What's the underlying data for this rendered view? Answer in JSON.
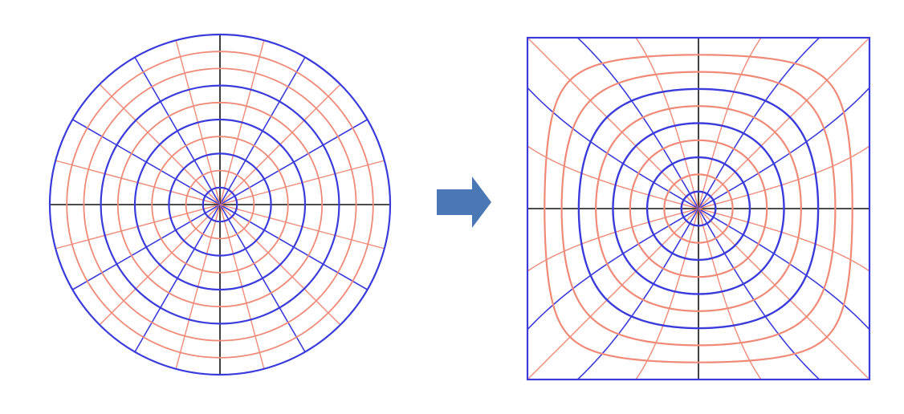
{
  "diagram": {
    "kind": "disc-to-square mapping",
    "colors": {
      "ring_major": "#3b3bdc",
      "ring_minor": "#f08a78",
      "axis": "#111111",
      "arrow": "#4a78b5",
      "background": "#ffffff"
    },
    "disc": {
      "ring_count": 10,
      "major_rings": [
        1,
        3,
        5,
        7,
        10
      ],
      "minor_rings": [
        2,
        4,
        6,
        8,
        9
      ],
      "spoke_count": 24,
      "major_spoke_every": 2
    },
    "square": {
      "ring_count": 10,
      "major_rings": [
        1,
        3,
        5,
        7,
        10
      ],
      "minor_rings": [
        2,
        4,
        6,
        8,
        9
      ],
      "spoke_count": 24,
      "major_spoke_every": 2,
      "outer_shape": "square"
    },
    "arrow_icon": "right-arrow-icon"
  }
}
